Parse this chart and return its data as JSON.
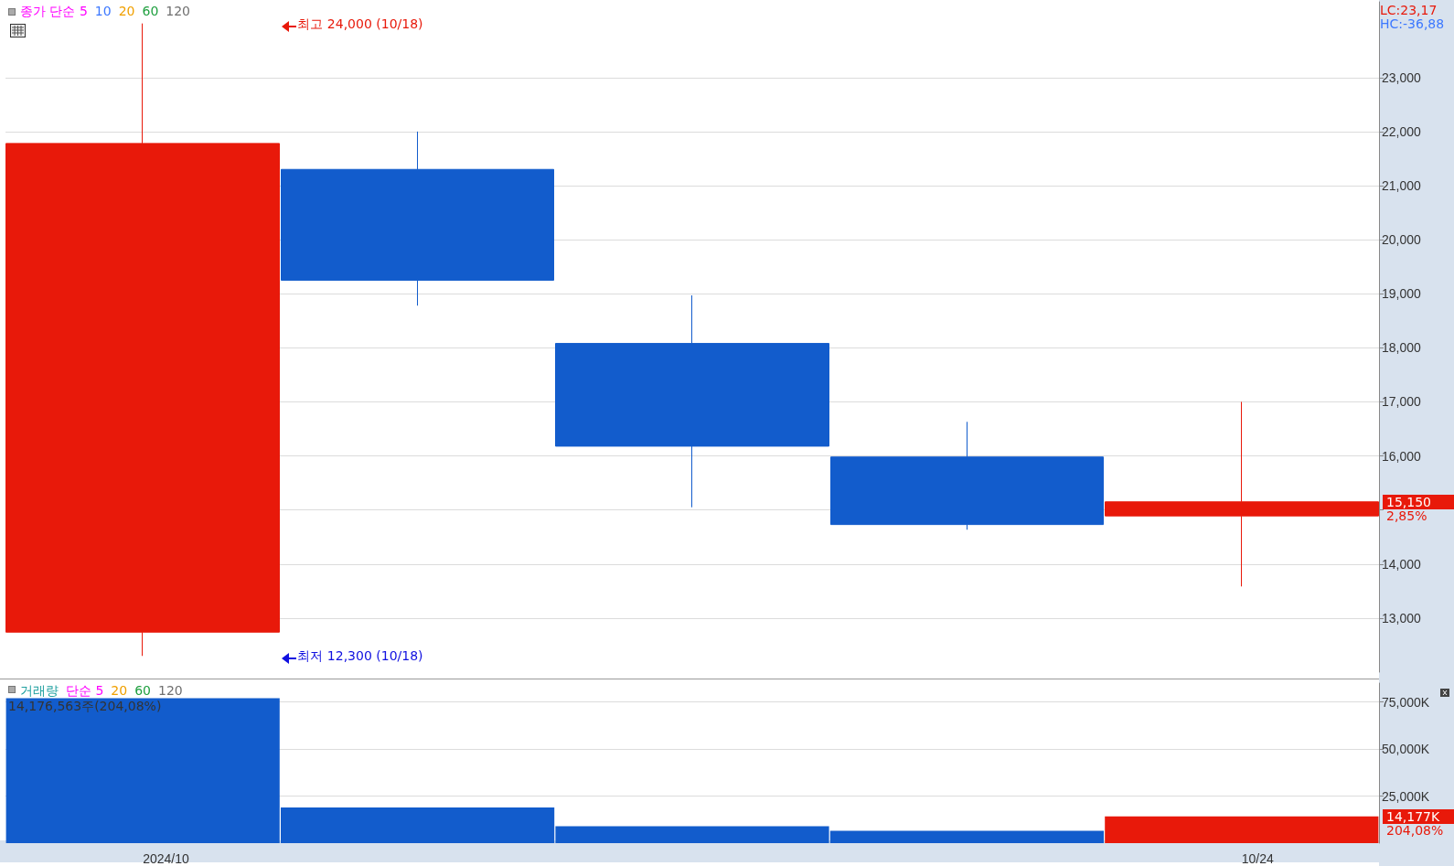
{
  "chart_data": [
    {
      "type": "candlestick",
      "categories": [
        null,
        null,
        null,
        null,
        null
      ],
      "ohlc": [
        [
          12740,
          24000,
          12300,
          21780
        ],
        [
          21300,
          22000,
          18780,
          19250
        ],
        [
          18080,
          18970,
          15050,
          16180
        ],
        [
          15980,
          16630,
          14635,
          14730
        ],
        [
          14890,
          17000,
          13585,
          15150
        ]
      ],
      "colors": [
        "#e8190a",
        "#125ccc",
        "#125ccc",
        "#125ccc",
        "#e8190a"
      ],
      "ylim": [
        12000,
        24400
      ],
      "yticks": [
        {
          "value": 13000,
          "label": "13,000"
        },
        {
          "value": 14000,
          "label": "14,000"
        },
        {
          "value": 15000,
          "label": null
        },
        {
          "value": 16000,
          "label": "16,000"
        },
        {
          "value": 17000,
          "label": "17,000"
        },
        {
          "value": 18000,
          "label": "18,000"
        },
        {
          "value": 19000,
          "label": "19,000"
        },
        {
          "value": 20000,
          "label": "20,000"
        },
        {
          "value": 21000,
          "label": "21,000"
        },
        {
          "value": 22000,
          "label": "22,000"
        },
        {
          "value": 23000,
          "label": "23,000"
        }
      ],
      "grid": "y",
      "tick_labels": "y",
      "annotations": [
        "종가 단순 5",
        "10",
        "20",
        "60",
        "120",
        "LC:23,17",
        "HC:-36,88",
        "최고 24,000 (10/18)",
        "최저 12,300 (10/18)",
        "15,150",
        "2,85%"
      ]
    },
    {
      "type": "bar",
      "categories": [
        "2024/10",
        null,
        null,
        null,
        "10/24"
      ],
      "values": [
        77000,
        19000,
        9000,
        6500,
        14177
      ],
      "colors": [
        "#125ccc",
        "#125ccc",
        "#125ccc",
        "#125ccc",
        "#e8190a"
      ],
      "ylim": [
        0,
        85000
      ],
      "yticks": [
        {
          "value": 25000,
          "label": "25,000K"
        },
        {
          "value": 50000,
          "label": "50,000K"
        },
        {
          "value": 75000,
          "label": "75,000K"
        }
      ],
      "grid": "y",
      "annotations": [
        "거래량",
        "단순 5",
        "20",
        "60",
        "120",
        "14,176,563주(204,08%)",
        "14,177K",
        "204,08%"
      ]
    }
  ]
}
